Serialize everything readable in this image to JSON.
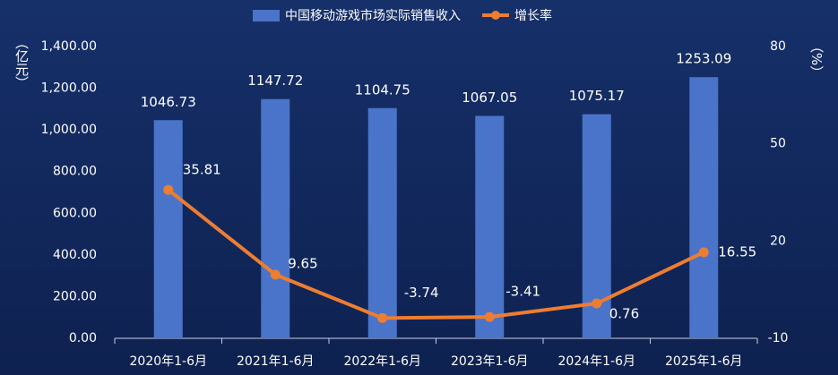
{
  "chart_data": {
    "type": "bar-line",
    "y_label": "（亿元）",
    "y2_label": "（%）",
    "categories": [
      "2020年1-6月",
      "2021年1-6月",
      "2022年1-6月",
      "2023年1-6月",
      "2024年1-6月",
      "2025年1-6月"
    ],
    "series": [
      {
        "name": "中国移动游戏市场实际销售收入",
        "type": "bar",
        "color": "#4a74c9",
        "values": [
          1046.73,
          1147.72,
          1104.75,
          1067.05,
          1075.17,
          1253.09
        ]
      },
      {
        "name": "增长率",
        "type": "line",
        "color": "#ed7d31",
        "axis": "y2",
        "values": [
          35.81,
          9.65,
          -3.74,
          -3.41,
          0.76,
          16.55
        ]
      }
    ],
    "ylim": [
      0,
      1400
    ],
    "yticks": [
      {
        "value": 0,
        "label": "0.00"
      },
      {
        "value": 200,
        "label": "200.00"
      },
      {
        "value": 400,
        "label": "400.00"
      },
      {
        "value": 600,
        "label": "600.00"
      },
      {
        "value": 800,
        "label": "800.00"
      },
      {
        "value": 1000,
        "label": "1,000.00"
      },
      {
        "value": 1200,
        "label": "1,200.00"
      },
      {
        "value": 1400,
        "label": "1,400.00"
      }
    ],
    "y2lim": [
      -10,
      80
    ],
    "y2ticks": [
      -10,
      20,
      50,
      80
    ],
    "legend": "top"
  }
}
